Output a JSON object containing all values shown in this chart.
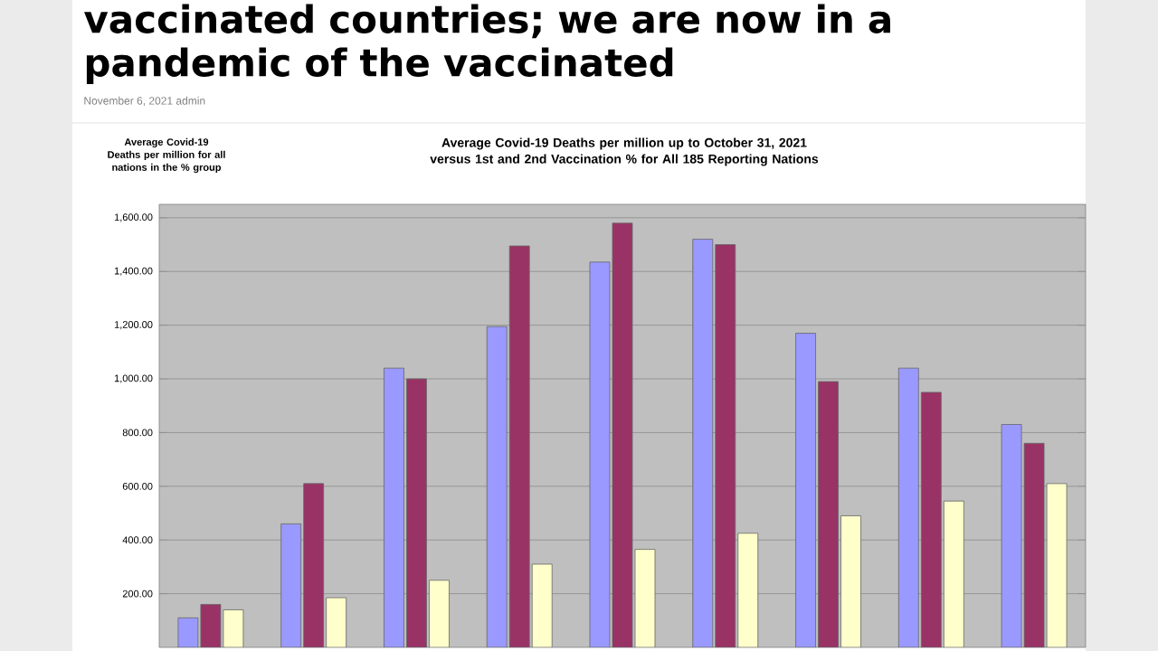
{
  "chart_data": {
    "type": "bar",
    "title": "Average Covid-19 Deaths per million up to October 31, 2021 versus 1st and 2nd Vaccination % for All 185 Reporting Nations",
    "ylabel": "Average Covid-19 Deaths per million for all nations in the % group",
    "annotations": [
      "vaccinated countries; we are now in a pandemic of the vaccinated",
      "November 6, 2021 admin"
    ],
    "categories": [
      null,
      null,
      null,
      null,
      null,
      null,
      null,
      null,
      null
    ],
    "series": [
      {
        "color": "#9999ff",
        "values": [
          110,
          460,
          1040,
          1195,
          1435,
          1520,
          1170,
          1040,
          830
        ]
      },
      {
        "color": "#993366",
        "values": [
          160,
          610,
          1000,
          1495,
          1580,
          1500,
          990,
          950,
          760
        ]
      },
      {
        "color": "#ffffcc",
        "values": [
          140,
          185,
          250,
          310,
          365,
          425,
          490,
          545,
          610
        ]
      }
    ],
    "ylim": [
      0,
      1650
    ],
    "yticks": [
      {
        "value": 200,
        "label": "200.00"
      },
      {
        "value": 400,
        "label": "400.00"
      },
      {
        "value": 600,
        "label": "600.00"
      },
      {
        "value": 800,
        "label": "800.00"
      },
      {
        "value": 1000,
        "label": "1,000.00"
      },
      {
        "value": 1200,
        "label": "1,200.00"
      },
      {
        "value": 1400,
        "label": "1,400.00"
      },
      {
        "value": 1600,
        "label": "1,600.00"
      }
    ],
    "grid": "y",
    "tick_labels": "y"
  }
}
